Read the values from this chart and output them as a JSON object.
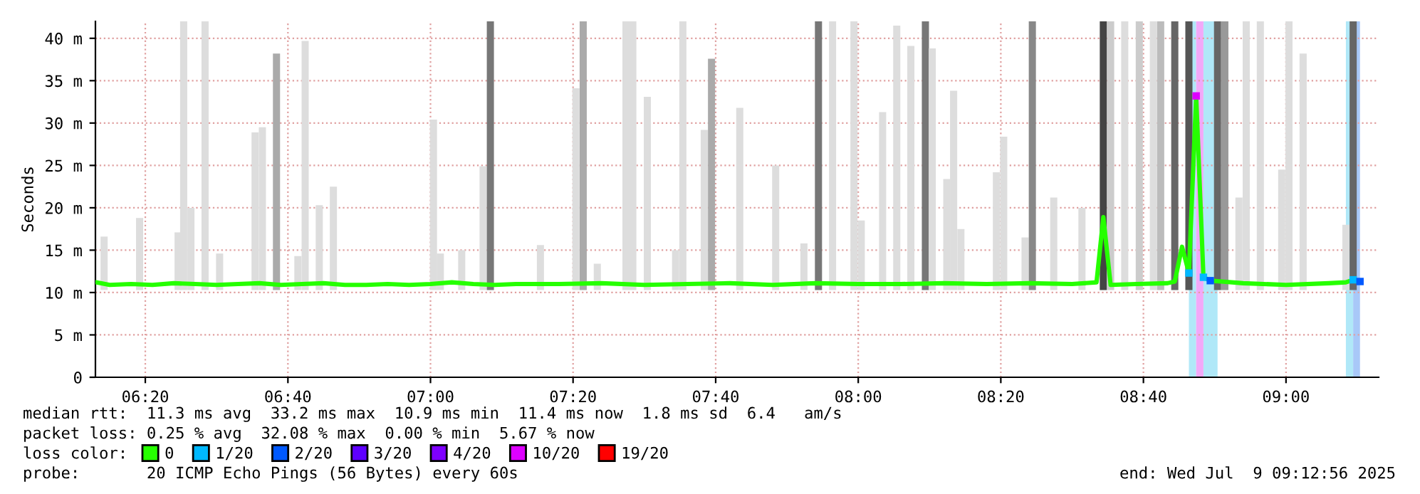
{
  "chart_data": {
    "type": "bar",
    "ylabel": "Seconds",
    "xlim": [
      6.2167,
      9.2167
    ],
    "xticks": [
      {
        "value": 6.3333,
        "label": "06:20"
      },
      {
        "value": 6.6667,
        "label": "06:40"
      },
      {
        "value": 7,
        "label": "07:00"
      },
      {
        "value": 7.3333,
        "label": "07:20"
      },
      {
        "value": 7.6667,
        "label": "07:40"
      },
      {
        "value": 8,
        "label": "08:00"
      },
      {
        "value": 8.3333,
        "label": "08:20"
      },
      {
        "value": 8.6667,
        "label": "08:40"
      },
      {
        "value": 9,
        "label": "09:00"
      }
    ],
    "ylim": [
      0,
      42
    ],
    "yticks": [
      0,
      {
        "value": 5,
        "label": "5 m"
      },
      {
        "value": 10,
        "label": "10 m"
      },
      {
        "value": 15,
        "label": "15 m"
      },
      {
        "value": 20,
        "label": "20 m"
      },
      {
        "value": 25,
        "label": "25 m"
      },
      {
        "value": 30,
        "label": "30 m"
      },
      {
        "value": 35,
        "label": "35 m"
      },
      {
        "value": 40,
        "label": "40 m"
      }
    ],
    "grid": true,
    "legend": "bottom",
    "legend_title": "loss color:",
    "bands": [
      {
        "axis": "x",
        "from": 8.773,
        "to": 8.79,
        "color": "#b0e8f8"
      },
      {
        "axis": "x",
        "from": 8.79,
        "to": 8.807,
        "color": "#f2a8f8"
      },
      {
        "axis": "x",
        "from": 8.807,
        "to": 8.84,
        "color": "#b0e8f8"
      },
      {
        "axis": "x",
        "from": 9.14,
        "to": 9.157,
        "color": "#b0e8f8"
      },
      {
        "axis": "x",
        "from": 9.157,
        "to": 9.173,
        "color": "#a8c8f8"
      }
    ],
    "series": [
      {
        "x": [
          6.237,
          6.32,
          6.41,
          6.423,
          6.44,
          6.473,
          6.507,
          6.59,
          6.607,
          6.64,
          6.69,
          6.707,
          6.74,
          6.773,
          7.007,
          7.023,
          7.073,
          7.123,
          7.14,
          7.257,
          7.34,
          7.357,
          7.39,
          7.457,
          7.473,
          7.507,
          7.573,
          7.59,
          7.64,
          7.657,
          7.723,
          7.807,
          7.873,
          7.907,
          7.94,
          7.99,
          8.007,
          8.057,
          8.09,
          8.123,
          8.157,
          8.173,
          8.207,
          8.223,
          8.24,
          8.323,
          8.34,
          8.39,
          8.407,
          8.457,
          8.523,
          8.573,
          8.59,
          8.623,
          8.657,
          8.69,
          8.707,
          8.74,
          8.773,
          8.84,
          8.857,
          8.89,
          8.907,
          8.94,
          8.99,
          9.007,
          9.04,
          9.14,
          9.157
        ],
        "base": [
          10.3,
          10.3,
          10.3,
          10.3,
          10.3,
          10.3,
          10.3,
          10.3,
          10.3,
          10.3,
          10.3,
          10.3,
          10.3,
          10.3,
          10.3,
          10.3,
          10.3,
          10.3,
          10.3,
          10.3,
          10.3,
          10.3,
          10.3,
          10.3,
          10.3,
          10.3,
          10.3,
          10.3,
          10.3,
          10.3,
          10.3,
          10.3,
          10.3,
          10.3,
          10.3,
          10.3,
          10.3,
          10.3,
          10.3,
          10.3,
          10.3,
          10.3,
          10.3,
          10.3,
          10.3,
          10.3,
          10.3,
          10.3,
          10.3,
          10.3,
          10.3,
          10.3,
          10.3,
          10.3,
          10.3,
          10.3,
          10.3,
          10.3,
          10.3,
          10.3,
          10.3,
          10.3,
          10.3,
          10.3,
          10.3,
          10.3,
          10.3,
          10.3,
          10.3
        ],
        "values": [
          6.3,
          8.5,
          6.8,
          31.7,
          9.7,
          31.7,
          4.3,
          18.6,
          19.2,
          27.9,
          4.0,
          29.4,
          10.0,
          12.2,
          20.1,
          4.3,
          4.7,
          14.6,
          31.7,
          5.3,
          23.8,
          31.7,
          3.1,
          31.7,
          31.7,
          22.8,
          4.7,
          31.7,
          18.9,
          27.3,
          21.5,
          14.7,
          5.5,
          31.7,
          31.7,
          31.7,
          8.2,
          21.0,
          31.2,
          28.8,
          31.7,
          28.5,
          13.1,
          23.5,
          7.2,
          13.9,
          18.1,
          6.2,
          31.7,
          10.9,
          9.7,
          31.7,
          31.7,
          31.7,
          31.7,
          31.7,
          31.7,
          31.7,
          31.7,
          31.7,
          31.7,
          10.9,
          31.7,
          31.7,
          14.2,
          31.7,
          27.9,
          7.7,
          31.7
        ],
        "colors": [
          "#dddddd",
          "#dddddd",
          "#dddddd",
          "#dddddd",
          "#dddddd",
          "#dddddd",
          "#dddddd",
          "#dddddd",
          "#dddddd",
          "#aaaaaa",
          "#dddddd",
          "#dddddd",
          "#dddddd",
          "#dddddd",
          "#dddddd",
          "#dddddd",
          "#dddddd",
          "#dddddd",
          "#777777",
          "#dddddd",
          "#dddddd",
          "#aaaaaa",
          "#dddddd",
          "#dddddd",
          "#dddddd",
          "#dddddd",
          "#dddddd",
          "#dddddd",
          "#dddddd",
          "#aaaaaa",
          "#dddddd",
          "#dddddd",
          "#dddddd",
          "#777777",
          "#dddddd",
          "#dddddd",
          "#dddddd",
          "#dddddd",
          "#dddddd",
          "#dddddd",
          "#777777",
          "#dddddd",
          "#dddddd",
          "#dddddd",
          "#dddddd",
          "#dddddd",
          "#dddddd",
          "#dddddd",
          "#888888",
          "#dddddd",
          "#dddddd",
          "#444444",
          "#cccccc",
          "#dddddd",
          "#cccccc",
          "#dddddd",
          "#bbbbbb",
          "#666666",
          "#555555",
          "#666666",
          "#999999",
          "#dddddd",
          "#dddddd",
          "#dddddd",
          "#dddddd",
          "#dddddd",
          "#dddddd",
          "#dddddd",
          "#666666"
        ]
      },
      {
        "type": "line",
        "name": "0",
        "color": "#26ff00",
        "x": [
          6.22,
          6.25,
          6.3,
          6.35,
          6.4,
          6.45,
          6.5,
          6.55,
          6.6,
          6.65,
          6.7,
          6.75,
          6.8,
          6.85,
          6.9,
          6.95,
          7.0,
          7.05,
          7.1,
          7.15,
          7.2,
          7.3,
          7.4,
          7.5,
          7.6,
          7.7,
          7.8,
          7.9,
          8.0,
          8.1,
          8.2,
          8.3,
          8.4,
          8.5,
          8.557,
          8.573,
          8.59,
          8.65,
          8.723,
          8.74,
          8.757,
          8.773,
          8.79,
          8.807,
          8.823,
          8.9,
          9.0,
          9.1,
          9.14,
          9.157,
          9.173
        ],
        "values": [
          11.2,
          10.9,
          11.0,
          10.9,
          11.1,
          11.0,
          10.9,
          11.0,
          11.1,
          10.9,
          11.0,
          11.1,
          10.9,
          10.9,
          11.0,
          10.9,
          11.0,
          11.2,
          11.0,
          10.9,
          11.0,
          11.0,
          11.1,
          10.9,
          11.0,
          11.1,
          10.9,
          11.1,
          11.0,
          11.0,
          11.1,
          11.0,
          11.1,
          11.0,
          11.2,
          18.9,
          10.9,
          11.0,
          11.1,
          11.3,
          15.4,
          12.3,
          33.2,
          11.8,
          11.4,
          11.1,
          10.9,
          11.1,
          11.2,
          11.5,
          11.3
        ]
      },
      {
        "type": "scatter",
        "marker": "square",
        "name": "1/20",
        "color": "#00b8ff",
        "x": [
          8.773,
          8.807,
          9.157
        ],
        "values": [
          12.3,
          11.8,
          11.5
        ]
      },
      {
        "type": "scatter",
        "marker": "square",
        "name": "2/20",
        "color": "#0059ff",
        "x": [
          8.823,
          9.173
        ],
        "values": [
          11.4,
          11.3
        ]
      },
      {
        "type": "scatter",
        "name": "3/20",
        "color": "#5e00ff"
      },
      {
        "type": "scatter",
        "name": "4/20",
        "color": "#7e00ff"
      },
      {
        "type": "scatter",
        "marker": "square",
        "name": "10/20",
        "color": "#dd00ff",
        "x": [
          8.79
        ],
        "values": [
          33.2
        ]
      },
      {
        "type": "scatter",
        "name": "19/20",
        "color": "#ff0000"
      }
    ],
    "annotations": [
      "median rtt:  11.3 ms avg  33.2 ms max  10.9 ms min  11.4 ms now  1.8 ms sd  6.4   am/s",
      "packet loss: 0.25 % avg  32.08 % max  0.00 % min  5.67 % now",
      "probe:       20 ICMP Echo Pings (56 Bytes) every 60s",
      "end: Wed Jul  9 09:12:56 2025"
    ]
  }
}
